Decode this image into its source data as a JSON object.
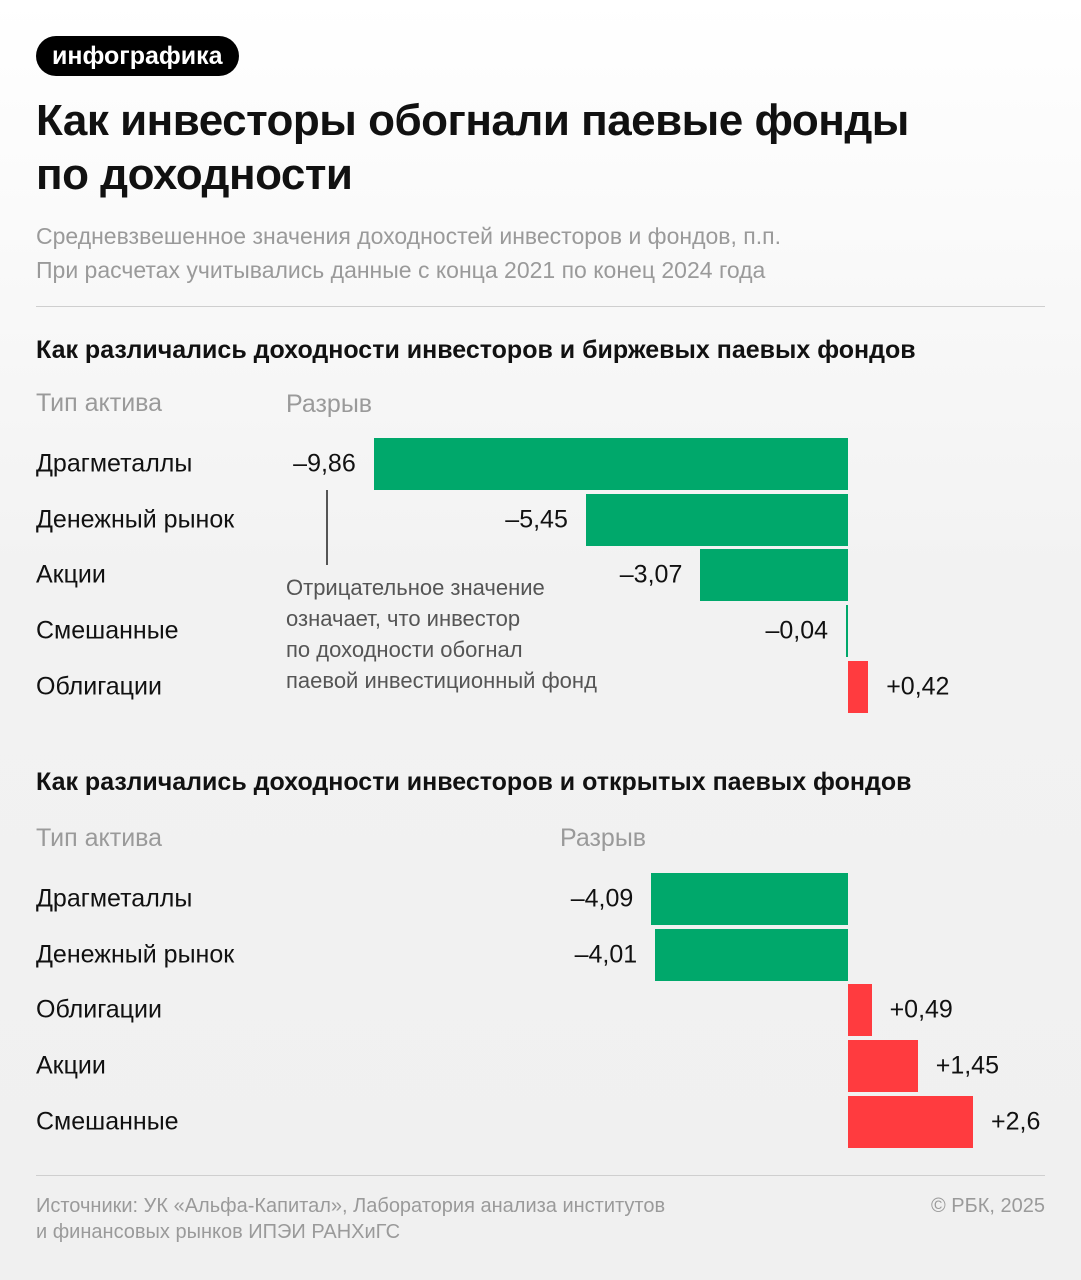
{
  "tag": "инфографика",
  "title_lines": [
    "Как инвесторы обогнали паевые фонды",
    "по доходности"
  ],
  "subtitle_lines": [
    "Средневзвешенное значения доходностей инвесторов и фондов, п.п.",
    "При расчетах учитывались данные с конца 2021 по конец 2024 года"
  ],
  "colors": {
    "negative": "#00a86b",
    "positive": "#ff3b3f"
  },
  "chart_data": [
    {
      "type": "bar",
      "orientation": "horizontal",
      "title": "Как различались доходности инвесторов и биржевых паевых фондов",
      "category_header": "Тип актива",
      "value_header": "Разрыв",
      "categories": [
        "Драгметаллы",
        "Денежный рынок",
        "Акции",
        "Смешанные",
        "Облигации"
      ],
      "values": [
        -9.86,
        -5.45,
        -3.07,
        -0.04,
        0.42
      ],
      "labels": [
        "–9,86",
        "–5,45",
        "–3,07",
        "–0,04",
        "+0,42"
      ],
      "annotation": [
        "Отрицательное значение",
        "означает, что инвестор",
        "по доходности обогнал",
        "паевой инвестиционный фонд"
      ]
    },
    {
      "type": "bar",
      "orientation": "horizontal",
      "title": "Как различались доходности инвесторов и открытых паевых фондов",
      "category_header": "Тип актива",
      "value_header": "Разрыв",
      "categories": [
        "Драгметаллы",
        "Денежный рынок",
        "Облигации",
        "Акции",
        "Смешанные"
      ],
      "values": [
        -4.09,
        -4.01,
        0.49,
        1.45,
        2.6
      ],
      "labels": [
        "–4,09",
        "–4,01",
        "+0,49",
        "+1,45",
        "+2,6"
      ]
    }
  ],
  "footer": {
    "source_lines": [
      "Источники: УК «Альфа-Капитал», Лаборатория анализа институтов",
      "и финансовых рынков ИПЭИ РАНХиГС"
    ],
    "copyright": "© РБК, 2025"
  }
}
